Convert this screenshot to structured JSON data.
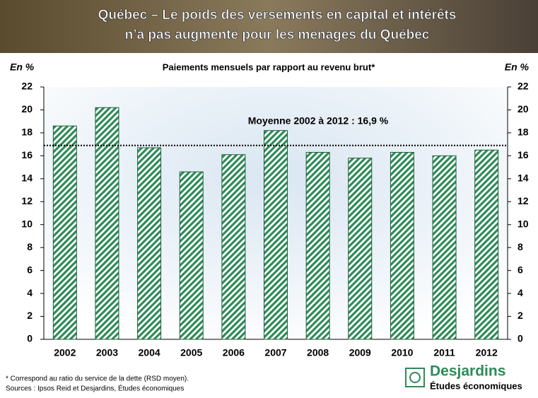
{
  "chart_data": {
    "type": "bar",
    "title_lines": [
      "Québec – Le poids des versements en capital et intérêts",
      "n’a pas augmenté pour les ménages du Québec"
    ],
    "subtitle": "Paiements mensuels par rapport au revenu brut*",
    "y_label": "En %",
    "y2_label": "En %",
    "categories": [
      "2002",
      "2003",
      "2004",
      "2005",
      "2006",
      "2007",
      "2008",
      "2009",
      "2010",
      "2011",
      "2012"
    ],
    "values": [
      18.6,
      20.2,
      16.7,
      14.6,
      16.1,
      18.2,
      16.3,
      15.8,
      16.3,
      16.0,
      16.5
    ],
    "color": "#2e8b57",
    "ylim": [
      0,
      22
    ],
    "yticks": [
      0,
      2,
      4,
      6,
      8,
      10,
      12,
      14,
      16,
      18,
      20,
      22
    ],
    "y2lim": [
      0,
      22
    ],
    "y2ticks": [
      0,
      2,
      4,
      6,
      8,
      10,
      12,
      14,
      16,
      18,
      20,
      22
    ],
    "average_line": {
      "value": 16.9,
      "label": "Moyenne 2002 à 2012 : 16,9 %"
    }
  },
  "notes": [
    "* Correspond au ratio du service de la dette (RSD moyen).",
    "Sources : Ipsos Reid et Desjardins, Études économiques"
  ],
  "logo": {
    "name": "Desjardins",
    "subtitle": "Études économiques"
  }
}
